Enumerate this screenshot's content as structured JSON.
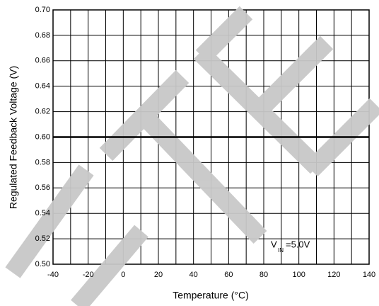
{
  "chart_data": {
    "type": "line",
    "x_label": "Temperature (°C)",
    "y_label": "Regulated Feedback Voltage (V)",
    "x": [
      -40,
      -20,
      0,
      20,
      40,
      60,
      80,
      100,
      120,
      140
    ],
    "series": [
      {
        "color": "#000000",
        "values": [
          0.6,
          0.6,
          0.6,
          0.6,
          0.6,
          0.6,
          0.6,
          0.6,
          0.6,
          0.6
        ]
      }
    ],
    "xlim": [
      -40,
      140
    ],
    "ylim": [
      0.5,
      0.7
    ],
    "xticks": [
      -40,
      -20,
      0,
      20,
      40,
      60,
      80,
      100,
      120,
      140
    ],
    "xminor_ticks": [
      -30,
      -10,
      10,
      30,
      50,
      70,
      90,
      110,
      130
    ],
    "yticks": [
      {
        "value": 0.5,
        "label": "0.50"
      },
      {
        "value": 0.52,
        "label": "0.52"
      },
      {
        "value": 0.54,
        "label": "0.54"
      },
      {
        "value": 0.56,
        "label": "0.56"
      },
      {
        "value": 0.58,
        "label": "0.58"
      },
      {
        "value": 0.6,
        "label": "0.60"
      },
      {
        "value": 0.62,
        "label": "0.62"
      },
      {
        "value": 0.64,
        "label": "0.64"
      },
      {
        "value": 0.66,
        "label": "0.66"
      },
      {
        "value": 0.68,
        "label": "0.68"
      },
      {
        "value": 0.7,
        "label": "0.70"
      }
    ],
    "grid": true,
    "annotation": {
      "text": "V",
      "subscript": "IN",
      "suffix": "=5.0V"
    }
  }
}
